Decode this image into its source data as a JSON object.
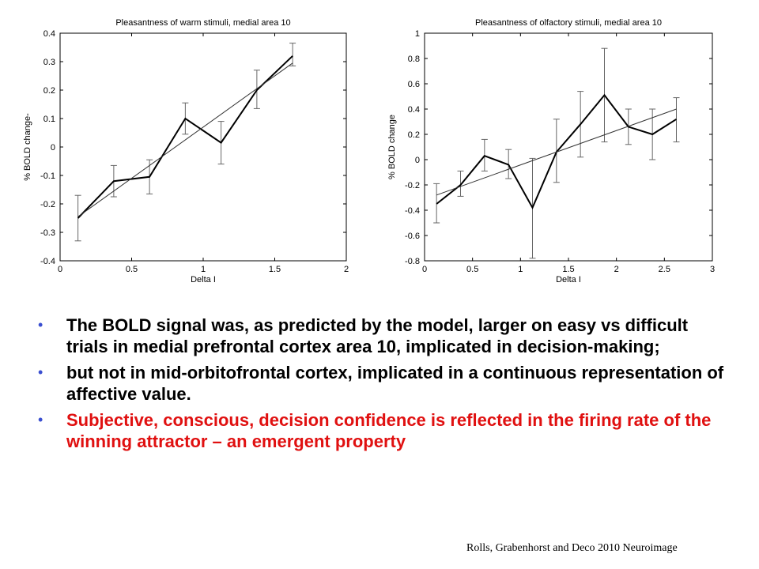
{
  "chart_data": [
    {
      "type": "line",
      "title": "Pleasantness of warm stimuli, medial area 10",
      "xlabel": "Delta I",
      "ylabel": "% BOLD change-",
      "xlim": [
        0,
        2
      ],
      "ylim": [
        -0.4,
        0.4
      ],
      "xticks": [
        0,
        0.5,
        1,
        1.5,
        2
      ],
      "xtick_labels": [
        "0",
        "0.5",
        "1",
        "1.5",
        "2"
      ],
      "yticks": [
        -0.4,
        -0.3,
        -0.2,
        -0.1,
        0,
        0.1,
        0.2,
        0.3,
        0.4
      ],
      "ytick_labels": [
        "-0.4",
        "-0.3",
        "-0.2",
        "-0.1",
        "0",
        "0.1",
        "0.2",
        "0.3",
        "0.4"
      ],
      "grid": false,
      "series": [
        {
          "x": [
            0.125,
            0.375,
            0.625,
            0.875,
            1.125,
            1.375,
            1.625
          ],
          "y": [
            -0.25,
            -0.12,
            -0.105,
            0.1,
            0.015,
            0.2,
            0.32
          ],
          "err_low": [
            -0.33,
            -0.175,
            -0.165,
            0.045,
            -0.06,
            0.135,
            0.285
          ],
          "err_high": [
            -0.17,
            -0.065,
            -0.045,
            0.155,
            0.09,
            0.27,
            0.365
          ]
        },
        {
          "role": "fit",
          "x": [
            0.125,
            1.625
          ],
          "y": [
            -0.245,
            0.295
          ]
        }
      ]
    },
    {
      "type": "line",
      "title": "Pleasantness of olfactory stimuli, medial area 10",
      "xlabel": "Delta I",
      "ylabel": "% BOLD change",
      "xlim": [
        0,
        3
      ],
      "ylim": [
        -0.8,
        1
      ],
      "xticks": [
        0,
        0.5,
        1,
        1.5,
        2,
        2.5,
        3
      ],
      "xtick_labels": [
        "0",
        "0.5",
        "1",
        "1.5",
        "2",
        "2.5",
        "3"
      ],
      "yticks": [
        -0.8,
        -0.6,
        -0.4,
        -0.2,
        0,
        0.2,
        0.4,
        0.6,
        0.8,
        1
      ],
      "ytick_labels": [
        "-0.8",
        "-0.6",
        "-0.4",
        "-0.2",
        "0",
        "0.2",
        "0.4",
        "0.6",
        "0.8",
        "1"
      ],
      "grid": false,
      "series": [
        {
          "x": [
            0.125,
            0.375,
            0.625,
            0.875,
            1.125,
            1.375,
            1.625,
            1.875,
            2.125,
            2.375,
            2.625
          ],
          "y": [
            -0.35,
            -0.2,
            0.03,
            -0.04,
            -0.38,
            0.06,
            0.28,
            0.51,
            0.26,
            0.2,
            0.32
          ],
          "err_low": [
            -0.5,
            -0.29,
            -0.09,
            -0.15,
            -0.78,
            -0.18,
            0.02,
            0.14,
            0.12,
            0,
            0.14
          ],
          "err_high": [
            -0.19,
            -0.09,
            0.16,
            0.08,
            0.01,
            0.32,
            0.54,
            0.88,
            0.4,
            0.4,
            0.49
          ]
        },
        {
          "role": "fit",
          "x": [
            0.125,
            2.625
          ],
          "y": [
            -0.28,
            0.4
          ]
        }
      ]
    }
  ],
  "bullets": [
    {
      "text": "The BOLD signal was, as predicted by the model, larger on easy vs difficult trials in medial prefrontal cortex area 10, implicated in decision-making;",
      "color": "#000000"
    },
    {
      "text": "but not in mid-orbitofrontal cortex, implicated in a continuous representation of affective value.",
      "color": "#000000"
    },
    {
      "text": "Subjective, conscious, decision confidence is reflected in the firing rate of the winning attractor – an emergent property",
      "color": "#e01010"
    }
  ],
  "bullet_symbol": "•",
  "bullet_color": "#3a4fd0",
  "citation": "Rolls, Grabenhorst and Deco 2010 Neuroimage"
}
